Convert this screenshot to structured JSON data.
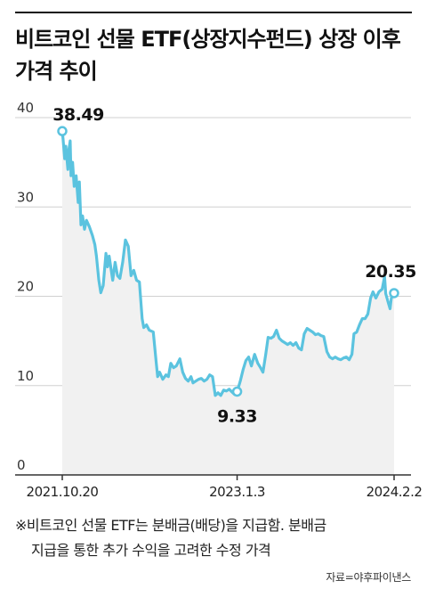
{
  "title": "비트코인 선물 ETF(상장지수펀드) 상장 이후 가격 추이",
  "footnote": {
    "line1": "※비트코인 선물 ETF는 분배금(배당)을 지급함. 분배금",
    "line2": "지급을 통한 추가 수익을 고려한 수정 가격"
  },
  "source": "자료=야후파이낸스",
  "colors": {
    "line": "#5bc3df",
    "area": "#f1f1f1",
    "grid": "#d0d0d0",
    "axis": "#333333"
  },
  "chart_data": {
    "type": "area",
    "title": "비트코인 선물 ETF(상장지수펀드) 상장 이후 가격 추이",
    "xlabel": "",
    "ylabel": "",
    "ylim": [
      0,
      40
    ],
    "yticks": [
      0,
      10,
      20,
      30,
      40
    ],
    "grid": true,
    "x_ticks": [
      "2021.10.20",
      "2023.1.3",
      "2024.2.2"
    ],
    "annotations": [
      {
        "x": "2021.10.20",
        "y": 38.49,
        "label": "38.49",
        "position": "above"
      },
      {
        "x": "2023.1.3",
        "y": 9.33,
        "label": "9.33",
        "position": "below"
      },
      {
        "x": "2024.2.2",
        "y": 20.35,
        "label": "20.35",
        "position": "above"
      }
    ],
    "series": [
      {
        "values": [
          [
            "2021-10-20",
            38.49
          ],
          [
            "2021-10-22",
            37.6
          ],
          [
            "2021-10-26",
            35.4
          ],
          [
            "2021-10-29",
            36.8
          ],
          [
            "2021-11-03",
            34.2
          ],
          [
            "2021-11-05",
            36.2
          ],
          [
            "2021-11-09",
            37.4
          ],
          [
            "2021-11-11",
            33.5
          ],
          [
            "2021-11-15",
            35.0
          ],
          [
            "2021-11-19",
            32.3
          ],
          [
            "2021-11-24",
            33.5
          ],
          [
            "2021-11-29",
            30.5
          ],
          [
            "2021-12-02",
            32.8
          ],
          [
            "2021-12-06",
            28.0
          ],
          [
            "2021-12-10",
            29.0
          ],
          [
            "2021-12-15",
            27.5
          ],
          [
            "2021-12-20",
            28.5
          ],
          [
            "2021-12-27",
            27.8
          ],
          [
            "2022-01-04",
            26.8
          ],
          [
            "2022-01-10",
            25.8
          ],
          [
            "2022-01-14",
            24.5
          ],
          [
            "2022-01-20",
            21.8
          ],
          [
            "2022-01-25",
            20.4
          ],
          [
            "2022-01-31",
            21.2
          ],
          [
            "2022-02-07",
            24.8
          ],
          [
            "2022-02-11",
            23.3
          ],
          [
            "2022-02-15",
            24.5
          ],
          [
            "2022-02-24",
            21.8
          ],
          [
            "2022-03-02",
            23.8
          ],
          [
            "2022-03-08",
            22.3
          ],
          [
            "2022-03-14",
            22.0
          ],
          [
            "2022-03-21",
            23.8
          ],
          [
            "2022-03-28",
            26.3
          ],
          [
            "2022-04-04",
            25.6
          ],
          [
            "2022-04-11",
            22.3
          ],
          [
            "2022-04-18",
            22.9
          ],
          [
            "2022-04-25",
            21.8
          ],
          [
            "2022-05-02",
            21.6
          ],
          [
            "2022-05-09",
            17.5
          ],
          [
            "2022-05-13",
            16.5
          ],
          [
            "2022-05-20",
            16.8
          ],
          [
            "2022-05-27",
            16.2
          ],
          [
            "2022-06-06",
            16.0
          ],
          [
            "2022-06-13",
            12.8
          ],
          [
            "2022-06-17",
            11.0
          ],
          [
            "2022-06-22",
            11.5
          ],
          [
            "2022-06-30",
            10.7
          ],
          [
            "2022-07-08",
            11.2
          ],
          [
            "2022-07-14",
            11.0
          ],
          [
            "2022-07-20",
            12.5
          ],
          [
            "2022-07-27",
            12.0
          ],
          [
            "2022-08-03",
            12.2
          ],
          [
            "2022-08-12",
            13.0
          ],
          [
            "2022-08-19",
            11.5
          ],
          [
            "2022-08-26",
            10.8
          ],
          [
            "2022-09-02",
            10.5
          ],
          [
            "2022-09-09",
            11.0
          ],
          [
            "2022-09-14",
            10.3
          ],
          [
            "2022-09-21",
            10.5
          ],
          [
            "2022-09-28",
            10.7
          ],
          [
            "2022-10-05",
            10.8
          ],
          [
            "2022-10-12",
            10.5
          ],
          [
            "2022-10-19",
            10.7
          ],
          [
            "2022-10-26",
            11.2
          ],
          [
            "2022-11-02",
            11.0
          ],
          [
            "2022-11-09",
            8.9
          ],
          [
            "2022-11-16",
            9.2
          ],
          [
            "2022-11-23",
            8.9
          ],
          [
            "2022-11-30",
            9.5
          ],
          [
            "2022-12-07",
            9.4
          ],
          [
            "2022-12-14",
            9.6
          ],
          [
            "2022-12-21",
            9.3
          ],
          [
            "2022-12-28",
            9.0
          ],
          [
            "2023-01-03",
            9.33
          ],
          [
            "2023-01-11",
            10.5
          ],
          [
            "2023-01-18",
            11.8
          ],
          [
            "2023-01-25",
            12.8
          ],
          [
            "2023-02-01",
            13.2
          ],
          [
            "2023-02-08",
            12.2
          ],
          [
            "2023-02-16",
            13.5
          ],
          [
            "2023-02-24",
            12.5
          ],
          [
            "2023-03-03",
            12.0
          ],
          [
            "2023-03-09",
            11.5
          ],
          [
            "2023-03-16",
            13.5
          ],
          [
            "2023-03-22",
            15.4
          ],
          [
            "2023-03-29",
            15.3
          ],
          [
            "2023-04-05",
            15.5
          ],
          [
            "2023-04-12",
            16.2
          ],
          [
            "2023-04-19",
            15.3
          ],
          [
            "2023-04-26",
            15.0
          ],
          [
            "2023-05-03",
            14.8
          ],
          [
            "2023-05-10",
            14.6
          ],
          [
            "2023-05-17",
            14.8
          ],
          [
            "2023-05-24",
            14.5
          ],
          [
            "2023-05-31",
            14.8
          ],
          [
            "2023-06-07",
            14.2
          ],
          [
            "2023-06-14",
            14.0
          ],
          [
            "2023-06-21",
            15.8
          ],
          [
            "2023-06-28",
            16.4
          ],
          [
            "2023-07-05",
            16.2
          ],
          [
            "2023-07-12",
            16.0
          ],
          [
            "2023-07-19",
            15.7
          ],
          [
            "2023-07-26",
            15.8
          ],
          [
            "2023-08-02",
            15.6
          ],
          [
            "2023-08-09",
            15.5
          ],
          [
            "2023-08-17",
            13.8
          ],
          [
            "2023-08-24",
            13.2
          ],
          [
            "2023-08-31",
            13.0
          ],
          [
            "2023-09-07",
            13.2
          ],
          [
            "2023-09-14",
            13.0
          ],
          [
            "2023-09-21",
            12.9
          ],
          [
            "2023-09-28",
            13.1
          ],
          [
            "2023-10-05",
            13.2
          ],
          [
            "2023-10-12",
            12.9
          ],
          [
            "2023-10-19",
            13.5
          ],
          [
            "2023-10-24",
            15.8
          ],
          [
            "2023-10-31",
            16.0
          ],
          [
            "2023-11-07",
            16.8
          ],
          [
            "2023-11-14",
            17.5
          ],
          [
            "2023-11-21",
            17.5
          ],
          [
            "2023-11-28",
            18.0
          ],
          [
            "2023-12-05",
            19.8
          ],
          [
            "2023-12-11",
            20.5
          ],
          [
            "2023-12-18",
            19.8
          ],
          [
            "2023-12-26",
            20.5
          ],
          [
            "2024-01-03",
            20.8
          ],
          [
            "2024-01-09",
            22.2
          ],
          [
            "2024-01-12",
            20.3
          ],
          [
            "2024-01-19",
            19.2
          ],
          [
            "2024-01-23",
            18.6
          ],
          [
            "2024-01-26",
            19.8
          ],
          [
            "2024-01-31",
            20.1
          ],
          [
            "2024-02-02",
            20.35
          ]
        ]
      }
    ]
  }
}
